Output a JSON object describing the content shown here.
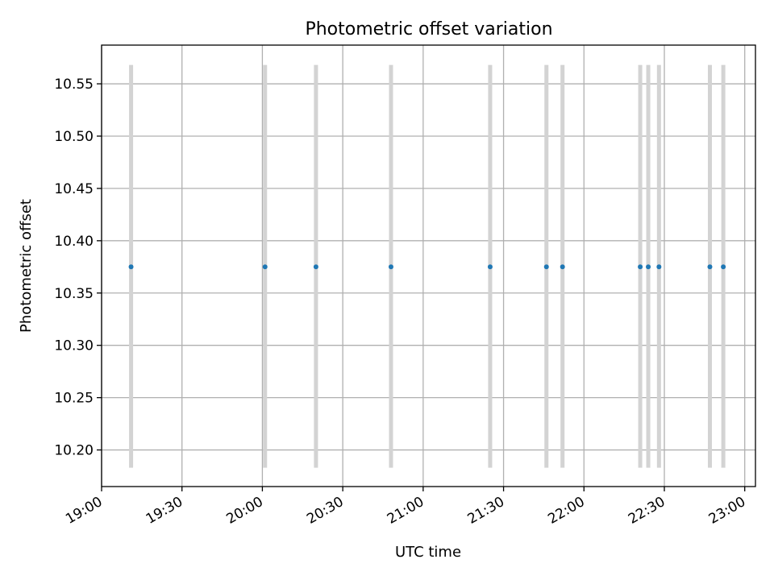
{
  "chart_data": {
    "type": "scatter",
    "title": "Photometric offset variation",
    "xlabel": "UTC time",
    "ylabel": "Photometric offset",
    "xlim": [
      "19:00",
      "23:04"
    ],
    "ylim": [
      10.165,
      10.587
    ],
    "grid": true,
    "x_ticks": [
      "19:00",
      "19:30",
      "20:00",
      "20:30",
      "21:00",
      "21:30",
      "22:00",
      "22:30",
      "23:00"
    ],
    "y_ticks": [
      "10.20",
      "10.25",
      "10.30",
      "10.35",
      "10.40",
      "10.45",
      "10.50",
      "10.55"
    ],
    "colors": {
      "points": "#1f77b4",
      "error_bars": "#d3d3d3",
      "grid": "#b0b0b0"
    },
    "series": [
      {
        "x": [
          "19:11",
          "20:01",
          "20:20",
          "20:48",
          "21:25",
          "21:46",
          "21:52",
          "22:21",
          "22:24",
          "22:28",
          "22:47",
          "22:52"
        ],
        "y": [
          10.375,
          10.375,
          10.375,
          10.375,
          10.375,
          10.375,
          10.375,
          10.375,
          10.375,
          10.375,
          10.375,
          10.375
        ],
        "error_low": 10.183,
        "error_high": 10.568
      }
    ]
  }
}
